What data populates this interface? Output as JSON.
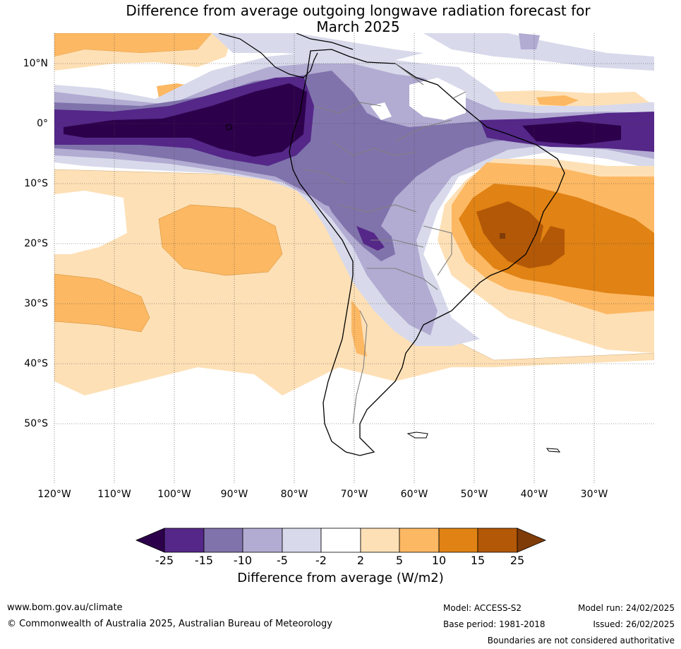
{
  "title": {
    "line1": "Difference from average outgoing longwave radiation forecast for",
    "line2": "March 2025"
  },
  "map": {
    "lat_labels": [
      "10°N",
      "0°",
      "10°S",
      "20°S",
      "30°S",
      "40°S",
      "50°S"
    ],
    "lon_labels": [
      "120°W",
      "110°W",
      "100°W",
      "90°W",
      "80°W",
      "70°W",
      "60°W",
      "50°W",
      "40°W",
      "30°W"
    ],
    "gridlines": true
  },
  "colorbar": {
    "ticks": [
      "-25",
      "-15",
      "-10",
      "-5",
      "-2",
      "2",
      "5",
      "10",
      "15",
      "25"
    ],
    "label": "Difference from average (W/m2)",
    "colors": [
      "#2d004b",
      "#542788",
      "#8073ac",
      "#b2abd2",
      "#d8daeb",
      "#ffffff",
      "#fee0b6",
      "#fdb863",
      "#e08214",
      "#b35806",
      "#7f3b08"
    ]
  },
  "footer": {
    "website": "www.bom.gov.au/climate",
    "copyright": "© Commonwealth of Australia 2025, Australian Bureau of Meteorology",
    "model": "Model: ACCESS-S2",
    "base_period": "Base period: 1981-2018",
    "model_run": "Model run: 24/02/2025",
    "issued": "Issued: 26/02/2025",
    "disclaimer": "Boundaries are not considered authoritative"
  }
}
